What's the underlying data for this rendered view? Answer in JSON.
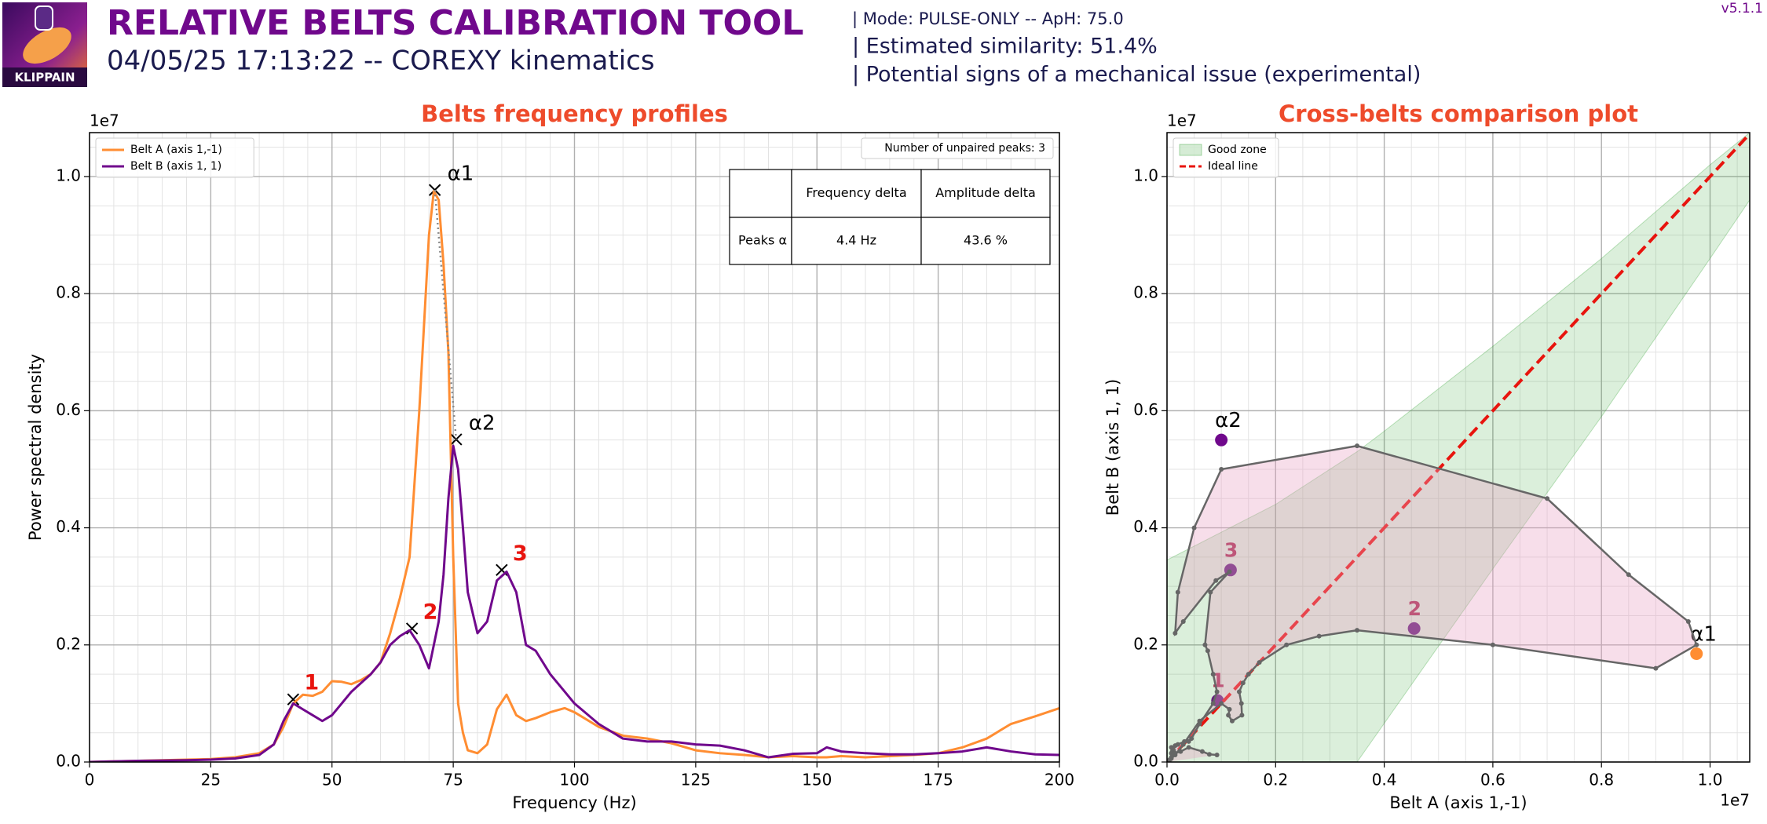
{
  "header": {
    "logo_text": "KLIPPAIN",
    "title": "RELATIVE BELTS CALIBRATION TOOL",
    "subtitle": "04/05/25 17:13:22 -- COREXY kinematics",
    "info": [
      "| Mode: PULSE-ONLY -- ApH: 75.0",
      "| Estimated similarity: 51.4%",
      "| Potential signs of a mechanical issue (experimental)"
    ],
    "version": "v5.1.1"
  },
  "chart_data": [
    {
      "type": "line",
      "title": "Belts frequency profiles",
      "xlabel": "Frequency (Hz)",
      "ylabel": "Power spectral density",
      "y_offset": "1e7",
      "x": [
        0,
        10,
        20,
        25,
        30,
        35,
        38,
        40,
        42,
        44,
        46,
        48,
        50,
        52,
        54,
        56,
        58,
        60,
        62,
        64,
        66,
        68,
        70,
        71,
        72,
        73,
        74,
        75,
        76,
        77,
        78,
        80,
        82,
        84,
        86,
        88,
        90,
        92,
        95,
        98,
        100,
        105,
        110,
        115,
        120,
        125,
        130,
        135,
        140,
        145,
        150,
        152,
        155,
        160,
        165,
        170,
        175,
        180,
        185,
        190,
        195,
        200
      ],
      "series": [
        {
          "name": "Belt A (axis 1,-1)",
          "color": "#ff8d32",
          "values": [
            0,
            0.002,
            0.004,
            0.005,
            0.008,
            0.015,
            0.03,
            0.06,
            0.1,
            0.115,
            0.113,
            0.12,
            0.138,
            0.137,
            0.133,
            0.14,
            0.15,
            0.17,
            0.22,
            0.28,
            0.35,
            0.6,
            0.9,
            0.975,
            0.96,
            0.85,
            0.7,
            0.35,
            0.1,
            0.05,
            0.02,
            0.015,
            0.03,
            0.09,
            0.115,
            0.08,
            0.07,
            0.075,
            0.085,
            0.092,
            0.085,
            0.06,
            0.045,
            0.04,
            0.032,
            0.02,
            0.015,
            0.012,
            0.008,
            0.01,
            0.008,
            0.008,
            0.01,
            0.008,
            0.01,
            0.012,
            0.015,
            0.025,
            0.04,
            0.065,
            0.078,
            0.092
          ]
        },
        {
          "name": "Belt B (axis 1, 1)",
          "color": "#70088c",
          "values": [
            0,
            0.002,
            0.003,
            0.004,
            0.006,
            0.012,
            0.03,
            0.07,
            0.1,
            0.09,
            0.08,
            0.07,
            0.08,
            0.1,
            0.12,
            0.135,
            0.15,
            0.17,
            0.2,
            0.215,
            0.225,
            0.2,
            0.16,
            0.2,
            0.24,
            0.32,
            0.45,
            0.54,
            0.5,
            0.4,
            0.29,
            0.22,
            0.24,
            0.31,
            0.325,
            0.29,
            0.2,
            0.19,
            0.15,
            0.12,
            0.1,
            0.065,
            0.04,
            0.035,
            0.035,
            0.03,
            0.028,
            0.02,
            0.008,
            0.014,
            0.015,
            0.025,
            0.018,
            0.015,
            0.013,
            0.013,
            0.015,
            0.018,
            0.025,
            0.018,
            0.013,
            0.012
          ]
        }
      ],
      "xlim": [
        0,
        200
      ],
      "ylim": [
        0,
        1.075
      ],
      "xticks": [
        0,
        25,
        50,
        75,
        100,
        125,
        150,
        175,
        200
      ],
      "yticks": [
        {
          "value": 0,
          "label": "0.0"
        },
        0.2,
        0.4,
        0.6,
        0.8,
        {
          "value": 1,
          "label": "1.0"
        }
      ],
      "grid": true,
      "minor_grid": true,
      "legend": "upper left",
      "label_color": "#e8140e",
      "peaks": [
        {
          "label": "1",
          "x": 42,
          "y": 0.107
        },
        {
          "label": "2",
          "x": 66.5,
          "y": 0.228
        },
        {
          "label": "3",
          "x": 85,
          "y": 0.328
        }
      ],
      "paired_peaks": [
        {
          "label": "α1",
          "x": 71.2,
          "y": 0.977
        },
        {
          "label": "α2",
          "x": 75.6,
          "y": 0.551
        }
      ],
      "unpaired_note": "Number of unpaired peaks: 3",
      "table": {
        "columns": [
          "Frequency delta",
          "Amplitude delta"
        ],
        "rows": [
          {
            "label": "Peaks α",
            "cells": [
              "4.4 Hz",
              "43.6 %"
            ]
          }
        ]
      }
    },
    {
      "type": "cross",
      "title": "Cross-belts comparison plot",
      "xlabel": "Belt A (axis 1,-1)",
      "ylabel": "Belt B (axis 1, 1)",
      "x_offset": "1e7",
      "y_offset": "1e7",
      "xlim": [
        0,
        1.073
      ],
      "ylim": [
        0,
        1.075
      ],
      "xticks": [
        {
          "value": 0,
          "label": "0.0"
        },
        0.2,
        0.4,
        0.6,
        0.8,
        {
          "value": 1,
          "label": "1.0"
        }
      ],
      "yticks": [
        {
          "value": 0,
          "label": "0.0"
        },
        0.2,
        0.4,
        0.6,
        0.8,
        {
          "value": 1,
          "label": "1.0"
        }
      ],
      "grid": true,
      "minor_grid": true,
      "legend": "upper left",
      "path_color": "#666666",
      "fill_color": "#e9a0c4",
      "label_color": "#c2185b",
      "good_zone": {
        "name": "Good zone",
        "color": "#2ca02c",
        "x": [
          0,
          0.2,
          0.35,
          0.4,
          0.6,
          0.8,
          1.0,
          1.073
        ],
        "upper": [
          0.345,
          0.44,
          0.53,
          0.565,
          0.71,
          0.86,
          1.02,
          1.075
        ],
        "lower": [
          0,
          0,
          0,
          0.066,
          0.33,
          0.59,
          0.86,
          0.96
        ]
      },
      "ideal_line": {
        "name": "Ideal line",
        "color": "#e8140e",
        "x": [
          0,
          1.073
        ],
        "y": [
          0,
          1.073
        ]
      },
      "points": [
        {
          "label": "1",
          "x": 0.093,
          "y": 0.105,
          "color": "#70088c"
        },
        {
          "label": "2",
          "x": 0.455,
          "y": 0.228,
          "color": "#70088c"
        },
        {
          "label": "3",
          "x": 0.117,
          "y": 0.328,
          "color": "#70088c"
        },
        {
          "label": "α1",
          "x": 0.975,
          "y": 0.185,
          "color": "#ff8d32"
        },
        {
          "label": "α2",
          "x": 0.1,
          "y": 0.55,
          "color": "#70088c"
        }
      ]
    }
  ]
}
